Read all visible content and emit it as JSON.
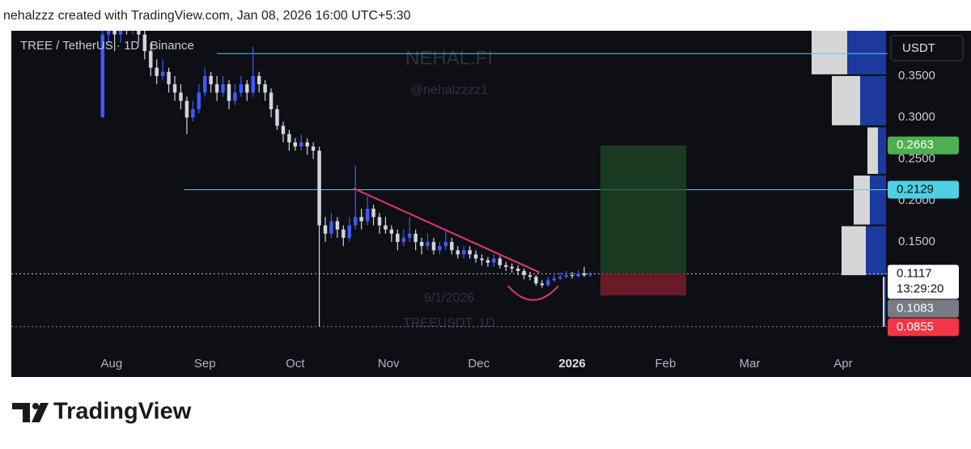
{
  "credit": "nehalzzz created with TradingView.com, Jan 08, 2026 16:00 UTC+5:30",
  "brand": "TradingView",
  "chart_data": {
    "type": "candlestick",
    "title": "TREE / TetherUS · 1D · Binance",
    "watermark": [
      "NEHAL.FI",
      "@nehalzzzz1",
      "9/1/2026",
      "TREEUSDT, 1D"
    ],
    "currency": "USDT",
    "up_color": "#3d5afe",
    "down_color": "#d1d4dc",
    "xlim": [
      -33.3,
      257.8
    ],
    "xticks": [
      {
        "value": 0,
        "label": "Aug"
      },
      {
        "value": 31,
        "label": "Sep"
      },
      {
        "value": 61,
        "label": "Oct"
      },
      {
        "value": 92,
        "label": "Nov"
      },
      {
        "value": 122,
        "label": "Dec"
      },
      {
        "value": 153,
        "label": "2026"
      },
      {
        "value": 184,
        "label": "Feb"
      },
      {
        "value": 212,
        "label": "Mar"
      },
      {
        "value": 243,
        "label": "Apr"
      }
    ],
    "ylim": [
      0.0175,
      0.4045
    ],
    "yticks": [
      {
        "value": 0.15,
        "label": "0.1500"
      },
      {
        "value": 0.2,
        "label": "0.2000"
      },
      {
        "value": 0.25,
        "label": "0.2500"
      },
      {
        "value": 0.3,
        "label": "0.3000"
      },
      {
        "value": 0.35,
        "label": "0.3500"
      }
    ],
    "x": [
      -3,
      -1,
      1,
      3,
      5,
      7,
      9,
      11,
      13,
      15,
      17,
      19,
      21,
      23,
      25,
      27,
      29,
      31,
      33,
      35,
      37,
      39,
      41,
      43,
      45,
      47,
      49,
      51,
      53,
      55,
      57,
      59,
      61,
      63,
      65,
      67,
      69,
      71,
      73,
      75,
      77,
      79,
      81,
      83,
      85,
      87,
      89,
      91,
      93,
      95,
      97,
      99,
      101,
      103,
      105,
      107,
      109,
      111,
      113,
      115,
      117,
      119,
      121,
      123,
      125,
      127,
      129,
      131,
      133,
      135,
      137,
      139,
      141,
      143,
      145,
      147,
      149,
      151,
      153,
      155,
      157,
      159
    ],
    "ohlc": [
      [
        0.3,
        0.43,
        0.3,
        0.4
      ],
      [
        0.4,
        0.43,
        0.39,
        0.41
      ],
      [
        0.41,
        0.43,
        0.38,
        0.4
      ],
      [
        0.4,
        0.44,
        0.39,
        0.42
      ],
      [
        0.42,
        0.43,
        0.4,
        0.41
      ],
      [
        0.41,
        0.44,
        0.4,
        0.43
      ],
      [
        0.43,
        0.43,
        0.39,
        0.4
      ],
      [
        0.4,
        0.41,
        0.37,
        0.38
      ],
      [
        0.38,
        0.39,
        0.35,
        0.36
      ],
      [
        0.36,
        0.37,
        0.34,
        0.35
      ],
      [
        0.35,
        0.37,
        0.345,
        0.355
      ],
      [
        0.355,
        0.36,
        0.33,
        0.34
      ],
      [
        0.34,
        0.35,
        0.32,
        0.33
      ],
      [
        0.33,
        0.34,
        0.31,
        0.32
      ],
      [
        0.32,
        0.325,
        0.28,
        0.3
      ],
      [
        0.3,
        0.32,
        0.295,
        0.31
      ],
      [
        0.31,
        0.34,
        0.305,
        0.33
      ],
      [
        0.33,
        0.36,
        0.325,
        0.35
      ],
      [
        0.35,
        0.355,
        0.33,
        0.34
      ],
      [
        0.34,
        0.35,
        0.32,
        0.33
      ],
      [
        0.33,
        0.35,
        0.325,
        0.34
      ],
      [
        0.34,
        0.345,
        0.31,
        0.32
      ],
      [
        0.32,
        0.34,
        0.315,
        0.33
      ],
      [
        0.33,
        0.35,
        0.325,
        0.34
      ],
      [
        0.34,
        0.345,
        0.32,
        0.33
      ],
      [
        0.33,
        0.385,
        0.325,
        0.35
      ],
      [
        0.35,
        0.355,
        0.33,
        0.34
      ],
      [
        0.34,
        0.345,
        0.32,
        0.33
      ],
      [
        0.33,
        0.335,
        0.3,
        0.31
      ],
      [
        0.31,
        0.315,
        0.285,
        0.29
      ],
      [
        0.29,
        0.295,
        0.27,
        0.28
      ],
      [
        0.28,
        0.285,
        0.26,
        0.27
      ],
      [
        0.27,
        0.275,
        0.26,
        0.265
      ],
      [
        0.265,
        0.28,
        0.26,
        0.27
      ],
      [
        0.27,
        0.275,
        0.255,
        0.265
      ],
      [
        0.265,
        0.27,
        0.25,
        0.26
      ],
      [
        0.26,
        0.265,
        0.048,
        0.17
      ],
      [
        0.17,
        0.18,
        0.15,
        0.16
      ],
      [
        0.16,
        0.185,
        0.155,
        0.175
      ],
      [
        0.175,
        0.18,
        0.155,
        0.165
      ],
      [
        0.165,
        0.17,
        0.145,
        0.155
      ],
      [
        0.155,
        0.18,
        0.15,
        0.17
      ],
      [
        0.17,
        0.242,
        0.165,
        0.18
      ],
      [
        0.18,
        0.19,
        0.165,
        0.175
      ],
      [
        0.175,
        0.205,
        0.17,
        0.19
      ],
      [
        0.19,
        0.195,
        0.17,
        0.18
      ],
      [
        0.18,
        0.185,
        0.16,
        0.17
      ],
      [
        0.17,
        0.18,
        0.16,
        0.165
      ],
      [
        0.165,
        0.17,
        0.15,
        0.16
      ],
      [
        0.16,
        0.165,
        0.14,
        0.15
      ],
      [
        0.15,
        0.165,
        0.145,
        0.155
      ],
      [
        0.155,
        0.18,
        0.15,
        0.16
      ],
      [
        0.16,
        0.165,
        0.14,
        0.15
      ],
      [
        0.15,
        0.155,
        0.135,
        0.145
      ],
      [
        0.145,
        0.16,
        0.14,
        0.15
      ],
      [
        0.15,
        0.155,
        0.135,
        0.14
      ],
      [
        0.14,
        0.15,
        0.135,
        0.145
      ],
      [
        0.145,
        0.165,
        0.14,
        0.15
      ],
      [
        0.15,
        0.155,
        0.135,
        0.14
      ],
      [
        0.14,
        0.145,
        0.13,
        0.135
      ],
      [
        0.135,
        0.145,
        0.13,
        0.14
      ],
      [
        0.14,
        0.145,
        0.13,
        0.135
      ],
      [
        0.135,
        0.14,
        0.125,
        0.13
      ],
      [
        0.13,
        0.135,
        0.122,
        0.128
      ],
      [
        0.128,
        0.132,
        0.12,
        0.125
      ],
      [
        0.125,
        0.135,
        0.12,
        0.13
      ],
      [
        0.13,
        0.133,
        0.118,
        0.122
      ],
      [
        0.122,
        0.126,
        0.115,
        0.12
      ],
      [
        0.12,
        0.124,
        0.113,
        0.118
      ],
      [
        0.118,
        0.122,
        0.11,
        0.115
      ],
      [
        0.115,
        0.118,
        0.105,
        0.11
      ],
      [
        0.11,
        0.114,
        0.104,
        0.108
      ],
      [
        0.108,
        0.11,
        0.097,
        0.1
      ],
      [
        0.1,
        0.104,
        0.095,
        0.098
      ],
      [
        0.098,
        0.108,
        0.096,
        0.104
      ],
      [
        0.104,
        0.112,
        0.102,
        0.106
      ],
      [
        0.106,
        0.113,
        0.104,
        0.108
      ],
      [
        0.108,
        0.115,
        0.106,
        0.11
      ],
      [
        0.11,
        0.114,
        0.106,
        0.109
      ],
      [
        0.109,
        0.116,
        0.107,
        0.112
      ],
      [
        0.112,
        0.12,
        0.108,
        0.11
      ],
      [
        0.11,
        0.114,
        0.108,
        0.1117
      ]
    ],
    "hlines": [
      {
        "value": 0.377,
        "from": 35,
        "color": "#5ec8e5",
        "style": "solid"
      },
      {
        "value": 0.2129,
        "from": 24,
        "color": "#5ec8e5",
        "style": "solid"
      },
      {
        "value": 0.1117,
        "from": -33.3,
        "color": "#c8c8c8",
        "style": "dotted"
      },
      {
        "value": 0.048,
        "from": -33.3,
        "color": "#8a8a8a",
        "style": "dotted"
      }
    ],
    "trendline": {
      "x": [
        80.4,
        142.2
      ],
      "y": [
        0.2145,
        0.1132
      ],
      "color": "#e8336f"
    },
    "arc": {
      "x": [
        131.7,
        140,
        148.4
      ],
      "y": [
        0.097,
        0.08,
        0.097
      ],
      "color": "#e8336f"
    },
    "position": {
      "x": [
        162.4,
        190.9
      ],
      "entry": 0.1117,
      "target": 0.2663,
      "stop": 0.0855
    },
    "volume_profile": [
      {
        "from": 0.352,
        "to": 0.4045,
        "down": 44,
        "up": 48
      },
      {
        "from": 0.2906,
        "to": 0.35,
        "down": 35,
        "up": 32
      },
      {
        "from": 0.232,
        "to": 0.288,
        "down": 13,
        "up": 10
      },
      {
        "from": 0.171,
        "to": 0.23,
        "down": 20,
        "up": 20
      },
      {
        "from": 0.11,
        "to": 0.169,
        "down": 30,
        "up": 25
      },
      {
        "from": 0.048,
        "to": 0.108,
        "down": 2,
        "up": 2
      }
    ],
    "price_labels": [
      {
        "value": 0.2663,
        "color": "#4caf50",
        "text_color": "#ffffff"
      },
      {
        "value": 0.2129,
        "color": "#4dd0e1",
        "text_color": "#0b0b0b"
      },
      {
        "value": 0.1117,
        "color": "#ffffff",
        "text_color": "#111111",
        "countdown": "13:29:20"
      },
      {
        "value": 0.1083,
        "color": "#787b86",
        "text_color": "#ffffff"
      },
      {
        "value": 0.0855,
        "color": "#f23645",
        "text_color": "#ffffff"
      }
    ]
  }
}
